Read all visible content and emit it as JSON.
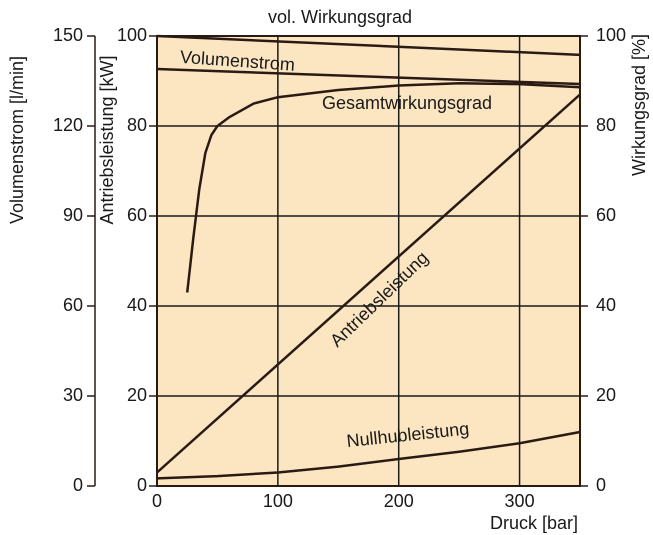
{
  "chart_data": {
    "type": "line",
    "xlabel": "Druck [bar]",
    "ylabel": "Antriebsleistung [kW]",
    "y2label": "Wirkungsgrad [%]",
    "y3label": "Volumenstrom [l/min]",
    "xlim": [
      0,
      350
    ],
    "xticks": [
      0,
      100,
      200,
      300
    ],
    "ylim": [
      0,
      100
    ],
    "yticks": [
      0,
      20,
      40,
      60,
      80,
      100
    ],
    "y2lim": [
      0,
      100
    ],
    "y2ticks": [
      0,
      20,
      40,
      60,
      80,
      100
    ],
    "y3lim": [
      0,
      150
    ],
    "y3ticks": [
      0,
      30,
      60,
      90,
      120,
      150
    ],
    "grid": true,
    "background": "#fce6c2",
    "series": [
      {
        "name": "vol. Wirkungsgrad",
        "axis": "y2",
        "color": "#2a1a14",
        "x": [
          0,
          350
        ],
        "values": [
          100,
          95.8
        ]
      },
      {
        "name": "Volumenstrom",
        "axis": "y3",
        "color": "#2a1a14",
        "x": [
          0,
          350
        ],
        "values": [
          139,
          134
        ]
      },
      {
        "name": "Gesamtwirkungsgrad",
        "axis": "y2",
        "color": "#2a1a14",
        "x": [
          25,
          30,
          35,
          40,
          45,
          50,
          60,
          80,
          100,
          150,
          200,
          250,
          300,
          350
        ],
        "values": [
          43,
          55,
          66,
          74,
          78,
          80,
          82,
          85,
          86.4,
          88,
          89,
          89.5,
          89.3,
          88.6
        ]
      },
      {
        "name": "Antriebsleistung",
        "color": "#2a1a14",
        "x": [
          0,
          350
        ],
        "values": [
          3,
          87
        ]
      },
      {
        "name": "Nullhubleistung",
        "color": "#2a1a14",
        "x": [
          0,
          50,
          100,
          150,
          200,
          250,
          300,
          350
        ],
        "values": [
          1.7,
          2.2,
          3,
          4.3,
          6,
          7.6,
          9.5,
          12
        ]
      }
    ]
  }
}
